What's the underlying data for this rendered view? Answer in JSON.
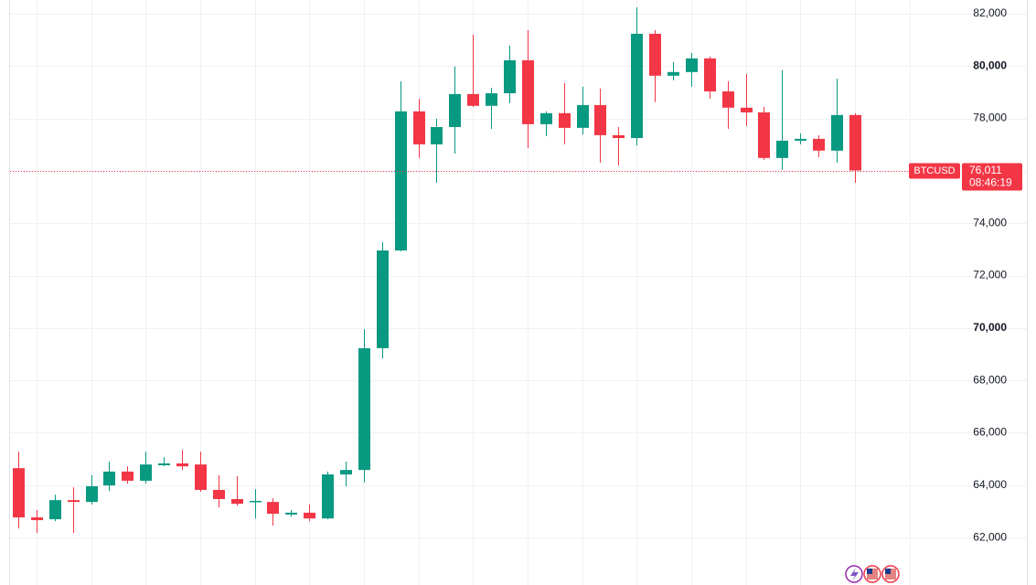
{
  "chart_data": {
    "type": "candlestick",
    "symbol": "BTCUSD",
    "last_price": {
      "value": 76011,
      "label": "76,011"
    },
    "countdown": "08:46:19",
    "up_color": "#089981",
    "down_color": "#f23645",
    "grid": true,
    "ylim": [
      60190,
      82520
    ],
    "yticks": [
      {
        "value": 62000,
        "label": "62,000"
      },
      {
        "value": 64000,
        "label": "64,000"
      },
      {
        "value": 66000,
        "label": "66,000"
      },
      {
        "value": 68000,
        "label": "68,000"
      },
      {
        "value": 70000,
        "label": "70,000"
      },
      {
        "value": 72000,
        "label": "72,000"
      },
      {
        "value": 74000,
        "label": "74,000"
      },
      {
        "value": 76000,
        "label": "76,000"
      },
      {
        "value": 78000,
        "label": "78,000"
      },
      {
        "value": 80000,
        "label": "80,000"
      },
      {
        "value": 82000,
        "label": "82,000"
      }
    ],
    "open": [
      64650,
      62770,
      62700,
      63430,
      63360,
      63990,
      64520,
      64170,
      64760,
      64830,
      64790,
      63820,
      63470,
      63360,
      63360,
      62880,
      62950,
      62730,
      64410,
      64580,
      69230,
      72960,
      78270,
      77010,
      77670,
      78930,
      78480,
      78960,
      80220,
      77780,
      78200,
      77640,
      78510,
      77360,
      77250,
      81230,
      79630,
      79770,
      80290,
      79030,
      78410,
      78230,
      76490,
      77150,
      77220,
      76770,
      78130
    ],
    "high": [
      65280,
      63050,
      63640,
      63920,
      64380,
      64900,
      64720,
      65280,
      65070,
      65350,
      65280,
      64380,
      64340,
      63850,
      63500,
      63050,
      63260,
      64520,
      64900,
      69960,
      73280,
      79420,
      78750,
      77990,
      79980,
      81200,
      79170,
      80780,
      81370,
      78270,
      79350,
      79210,
      79140,
      77670,
      82240,
      81370,
      80150,
      80500,
      80360,
      79420,
      79700,
      78440,
      79840,
      77430,
      77360,
      79520,
      78200
    ],
    "low": [
      62350,
      62180,
      62630,
      62180,
      63260,
      63780,
      64060,
      64060,
      64720,
      64580,
      63750,
      63150,
      63220,
      62730,
      62460,
      62800,
      62630,
      62700,
      63960,
      64100,
      68840,
      72930,
      76490,
      75540,
      76660,
      78440,
      77600,
      78580,
      76870,
      77320,
      77010,
      77390,
      76310,
      76210,
      76970,
      78620,
      79450,
      79210,
      78750,
      77600,
      77710,
      76420,
      76030,
      77010,
      76520,
      76310,
      75540
    ],
    "close": [
      62770,
      62665,
      63430,
      63360,
      63960,
      64520,
      64170,
      64790,
      64830,
      64720,
      63820,
      63470,
      63290,
      63400,
      62910,
      62950,
      62730,
      64410,
      64580,
      69230,
      72960,
      78270,
      77010,
      77670,
      78930,
      78480,
      78960,
      80220,
      77780,
      78200,
      77640,
      78510,
      77360,
      77250,
      81230,
      79630,
      79770,
      80290,
      79030,
      78410,
      78230,
      76490,
      77150,
      77220,
      76770,
      78130,
      76011
    ]
  }
}
